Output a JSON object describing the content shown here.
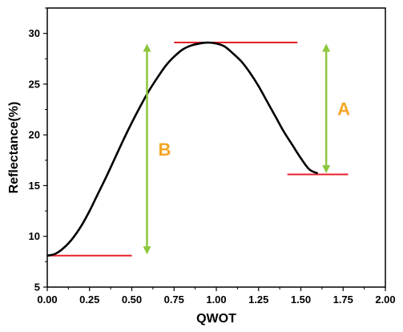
{
  "chart_data": {
    "type": "line",
    "title": "",
    "xlabel": "QWOT",
    "ylabel": "Reflectance(%)",
    "xlim": [
      0,
      2
    ],
    "ylim": [
      5,
      32.5
    ],
    "x_ticks": [
      "0.00",
      "0.25",
      "0.50",
      "0.75",
      "1.00",
      "1.25",
      "1.50",
      "1.75",
      "2.00"
    ],
    "y_ticks": [
      "5",
      "10",
      "15",
      "20",
      "25",
      "30"
    ],
    "grid": false,
    "series": [
      {
        "color": "#000000",
        "x": [
          0.0,
          0.05,
          0.1,
          0.15,
          0.2,
          0.25,
          0.3,
          0.35,
          0.4,
          0.45,
          0.5,
          0.55,
          0.6,
          0.65,
          0.7,
          0.75,
          0.8,
          0.85,
          0.9,
          0.95,
          1.0,
          1.05,
          1.1,
          1.15,
          1.2,
          1.25,
          1.3,
          1.35,
          1.4,
          1.45,
          1.5,
          1.55,
          1.6
        ],
        "y": [
          8.1,
          8.3,
          8.9,
          9.8,
          11.0,
          12.5,
          14.2,
          15.9,
          17.7,
          19.5,
          21.2,
          22.8,
          24.3,
          25.6,
          26.8,
          27.7,
          28.4,
          28.8,
          29.0,
          29.1,
          29.0,
          28.7,
          28.0,
          27.2,
          26.1,
          24.8,
          23.3,
          21.8,
          20.3,
          19.0,
          17.7,
          16.6,
          16.2
        ]
      }
    ],
    "reference_lines": [
      {
        "color": "#e8202a",
        "x": [
          0.0,
          0.5
        ],
        "y": 8.1
      },
      {
        "color": "#e8202a",
        "x": [
          0.75,
          1.48
        ],
        "y": 29.1
      },
      {
        "color": "#e8202a",
        "x": [
          1.42,
          1.78
        ],
        "y": 16.1
      }
    ],
    "annotations": [
      {
        "label": "A",
        "color": "#8dc63f",
        "label_color": "#f5a623",
        "x": 1.65,
        "y_from": 16.3,
        "y_to": 28.9
      },
      {
        "label": "B",
        "color": "#8dc63f",
        "label_color": "#f5a623",
        "x": 0.59,
        "y_from": 8.3,
        "y_to": 28.9
      }
    ]
  }
}
